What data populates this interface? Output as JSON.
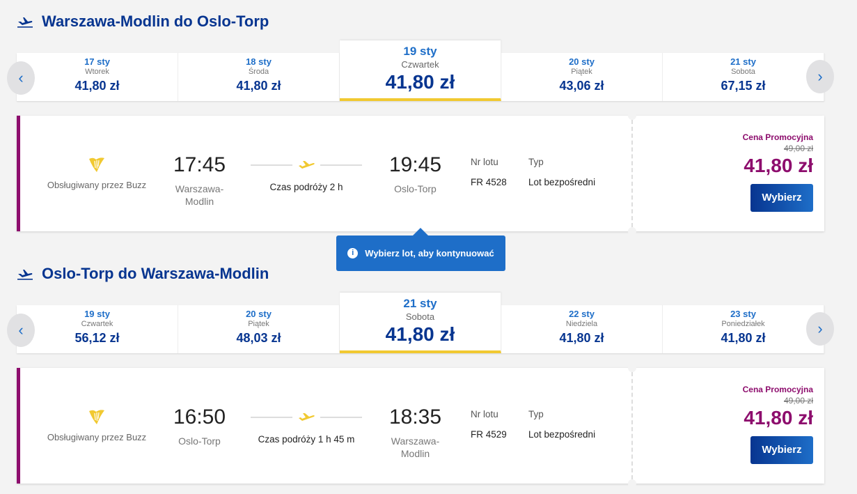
{
  "colors": {
    "brand": "#073590",
    "accent": "#1e6ec8",
    "promo": "#8d0d6d",
    "highlight": "#f1c931"
  },
  "tooltip": {
    "text": "Wybierz lot, aby kontynuować",
    "icon": "info-icon"
  },
  "sections": [
    {
      "title": "Warszawa-Modlin do Oslo-Torp",
      "dates": [
        {
          "date": "17 sty",
          "day": "Wtorek",
          "price": "41,80 zł"
        },
        {
          "date": "18 sty",
          "day": "Środa",
          "price": "41,80 zł"
        },
        {
          "date": "19 sty",
          "day": "Czwartek",
          "price": "41,80 zł",
          "selected": true
        },
        {
          "date": "20 sty",
          "day": "Piątek",
          "price": "43,06 zł"
        },
        {
          "date": "21 sty",
          "day": "Sobota",
          "price": "67,15 zł"
        }
      ],
      "flight": {
        "operator": "Obsługiwany przez Buzz",
        "dep_time": "17:45",
        "dep_city": "Warszawa-Modlin",
        "arr_time": "19:45",
        "arr_city": "Oslo-Torp",
        "duration": "Czas podróży 2 h",
        "flight_no_label": "Nr lotu",
        "flight_no": "FR 4528",
        "type_label": "Typ",
        "type": "Lot bezpośredni",
        "promo_label": "Cena Promocyjna",
        "old_price": "49,00 zł",
        "price": "41,80 zł",
        "select_label": "Wybierz"
      }
    },
    {
      "title": "Oslo-Torp do Warszawa-Modlin",
      "dates": [
        {
          "date": "19 sty",
          "day": "Czwartek",
          "price": "56,12 zł"
        },
        {
          "date": "20 sty",
          "day": "Piątek",
          "price": "48,03 zł"
        },
        {
          "date": "21 sty",
          "day": "Sobota",
          "price": "41,80 zł",
          "selected": true
        },
        {
          "date": "22 sty",
          "day": "Niedziela",
          "price": "41,80 zł"
        },
        {
          "date": "23 sty",
          "day": "Poniedziałek",
          "price": "41,80 zł"
        }
      ],
      "flight": {
        "operator": "Obsługiwany przez Buzz",
        "dep_time": "16:50",
        "dep_city": "Oslo-Torp",
        "arr_time": "18:35",
        "arr_city": "Warszawa-Modlin",
        "duration": "Czas podróży 1 h 45 m",
        "flight_no_label": "Nr lotu",
        "flight_no": "FR 4529",
        "type_label": "Typ",
        "type": "Lot bezpośredni",
        "promo_label": "Cena Promocyjna",
        "old_price": "49,00 zł",
        "price": "41,80 zł",
        "select_label": "Wybierz"
      }
    }
  ]
}
